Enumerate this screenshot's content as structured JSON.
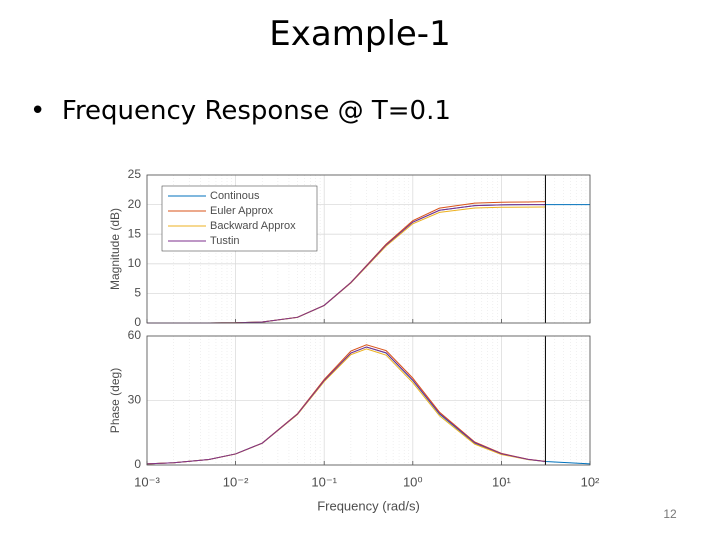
{
  "slide": {
    "title": "Example-1",
    "bullet": "Frequency Response @ T=0.1",
    "page_number": "12"
  },
  "chart_data": [
    {
      "type": "line",
      "ylabel": "Magnitude (dB)",
      "xscale": "log",
      "grid": true,
      "legend": "upper left",
      "x": [
        0.001,
        0.002,
        0.005,
        0.01,
        0.02,
        0.05,
        0.1,
        0.2,
        0.3,
        0.5,
        1,
        2,
        5,
        10,
        20,
        31.4,
        100
      ],
      "xlim": [
        0.001,
        100
      ],
      "xticks": [
        0.001,
        0.01,
        0.1,
        1,
        10,
        100
      ],
      "ylim": [
        0,
        25
      ],
      "yticks": [
        0,
        5,
        10,
        15,
        20,
        25
      ],
      "xline": 31.4,
      "series": [
        {
          "name": "Continous",
          "color": "#0072bd",
          "values": [
            0,
            0,
            0.01,
            0.04,
            0.17,
            0.96,
            2.97,
            6.82,
            9.63,
            13.18,
            17.03,
            19.04,
            19.83,
            19.96,
            19.99,
            20.0,
            20.0
          ]
        },
        {
          "name": "Euler Approx",
          "color": "#d95319",
          "values": [
            0,
            0,
            0.01,
            0.04,
            0.17,
            0.97,
            2.99,
            6.87,
            9.72,
            13.33,
            17.28,
            19.4,
            20.25,
            20.4,
            20.45,
            20.5,
            null
          ]
        },
        {
          "name": "Backward Approx",
          "color": "#edb120",
          "values": [
            0,
            0,
            0.01,
            0.04,
            0.17,
            0.95,
            2.94,
            6.75,
            9.52,
            13.0,
            16.76,
            18.68,
            19.42,
            19.55,
            19.58,
            19.6,
            null
          ]
        },
        {
          "name": "Tustin",
          "color": "#7e2f8e",
          "values": [
            0,
            0,
            0.01,
            0.04,
            0.17,
            0.96,
            2.97,
            6.82,
            9.63,
            13.18,
            17.03,
            19.04,
            19.83,
            19.96,
            19.99,
            20.0,
            null
          ]
        }
      ]
    },
    {
      "type": "line",
      "ylabel": "Phase (deg)",
      "xlabel": "Frequency  (rad/s)",
      "xscale": "log",
      "grid": true,
      "x": [
        0.001,
        0.002,
        0.005,
        0.01,
        0.02,
        0.05,
        0.1,
        0.2,
        0.3,
        0.5,
        1,
        2,
        5,
        10,
        20,
        31.4,
        100
      ],
      "xlim": [
        0.001,
        100
      ],
      "xticks": [
        {
          "value": 0.001,
          "label": "10⁻³"
        },
        {
          "value": 0.01,
          "label": "10⁻²"
        },
        {
          "value": 0.1,
          "label": "10⁻¹"
        },
        {
          "value": 1,
          "label": "10⁰"
        },
        {
          "value": 10,
          "label": "10¹"
        },
        {
          "value": 100,
          "label": "10²"
        }
      ],
      "ylim": [
        0,
        60
      ],
      "yticks": [
        0,
        30,
        60
      ],
      "xline": 31.4,
      "series": [
        {
          "name": "Continous",
          "color": "#0072bd",
          "values": [
            0.51,
            1.03,
            2.58,
            5.14,
            10.16,
            23.7,
            39.3,
            52.1,
            54.9,
            52.1,
            39.3,
            23.7,
            10.16,
            5.14,
            2.58,
            1.64,
            0.51
          ]
        },
        {
          "name": "Euler Approx",
          "color": "#d95319",
          "values": [
            0.51,
            1.03,
            2.58,
            5.15,
            10.2,
            23.9,
            39.8,
            53.0,
            55.9,
            53.2,
            40.4,
            24.6,
            10.7,
            5.4,
            2.7,
            1.7,
            null
          ]
        },
        {
          "name": "Backward Approx",
          "color": "#edb120",
          "values": [
            0.51,
            1.03,
            2.57,
            5.12,
            10.1,
            23.5,
            38.8,
            51.3,
            54.0,
            51.1,
            38.3,
            22.9,
            9.7,
            4.9,
            2.5,
            1.6,
            null
          ]
        },
        {
          "name": "Tustin",
          "color": "#7e2f8e",
          "values": [
            0.51,
            1.03,
            2.58,
            5.14,
            10.16,
            23.7,
            39.3,
            52.1,
            54.9,
            52.2,
            39.5,
            24.0,
            10.4,
            5.25,
            2.6,
            1.65,
            null
          ]
        }
      ]
    }
  ]
}
